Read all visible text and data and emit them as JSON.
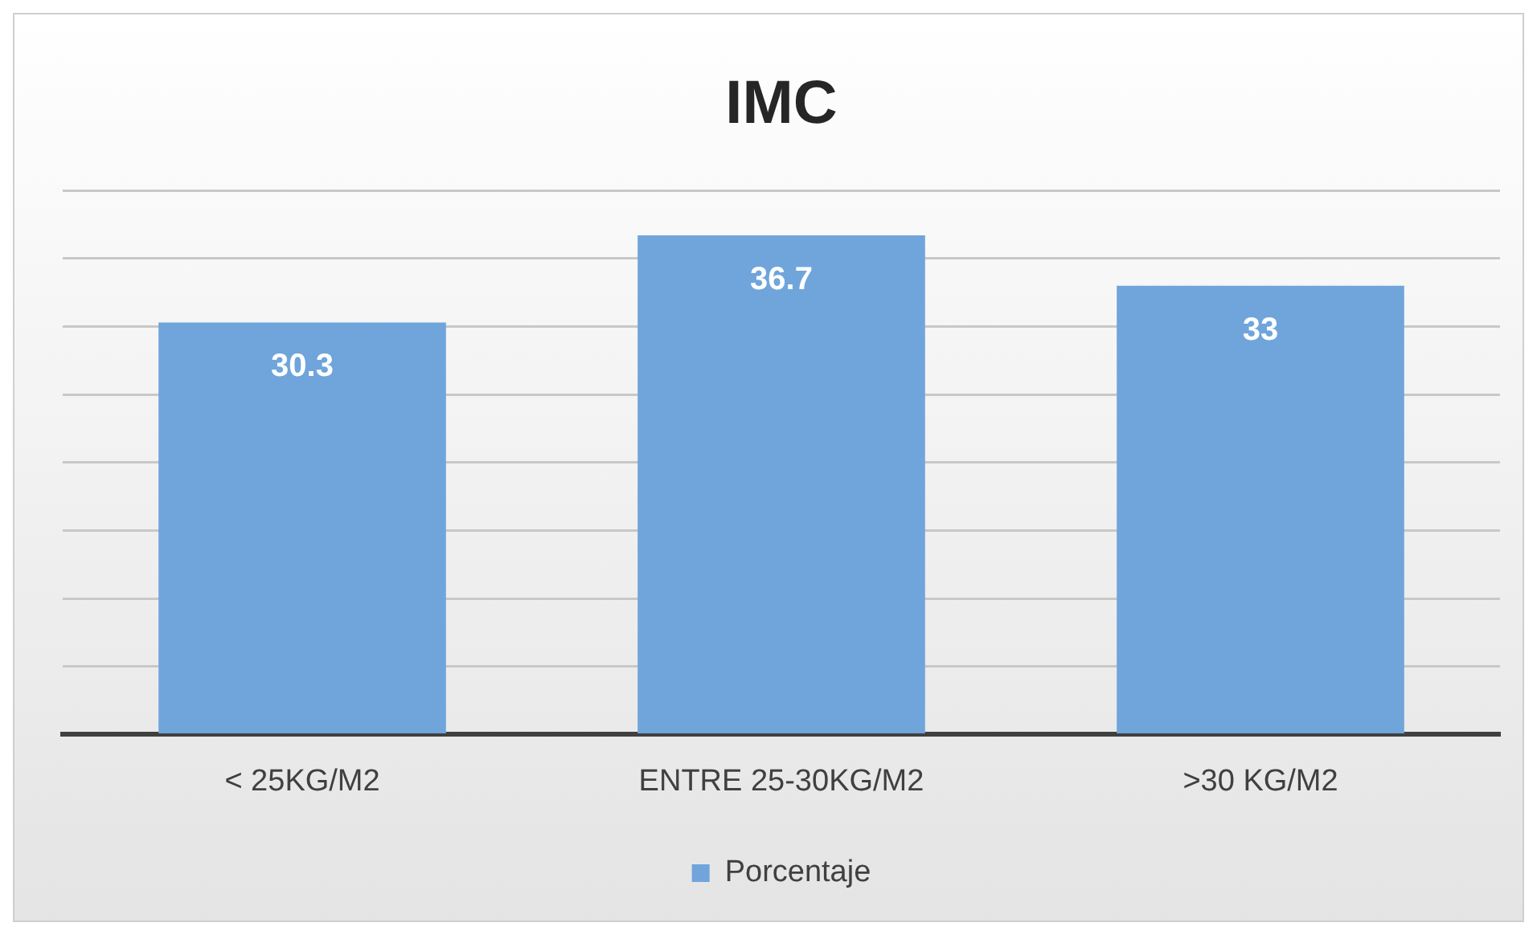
{
  "chart_data": {
    "type": "bar",
    "title": "IMC",
    "categories": [
      "< 25KG/M2",
      "ENTRE 25-30KG/M2",
      ">30 KG/M2"
    ],
    "series": [
      {
        "name": "Porcentaje",
        "color": "#6fa5db",
        "values": [
          30.3,
          36.7,
          33
        ]
      }
    ],
    "ylim": [
      0,
      40
    ],
    "yticks": [
      {
        "value": 0,
        "label": null
      },
      {
        "value": 5,
        "label": null
      },
      {
        "value": 10,
        "label": null
      },
      {
        "value": 15,
        "label": null
      },
      {
        "value": 20,
        "label": null
      },
      {
        "value": 25,
        "label": null
      },
      {
        "value": 30,
        "label": null
      },
      {
        "value": 35,
        "label": null
      },
      {
        "value": 40,
        "label": null
      }
    ],
    "tick_labels": "x",
    "grid": "y",
    "legend": "bottom",
    "data_labels": true
  }
}
